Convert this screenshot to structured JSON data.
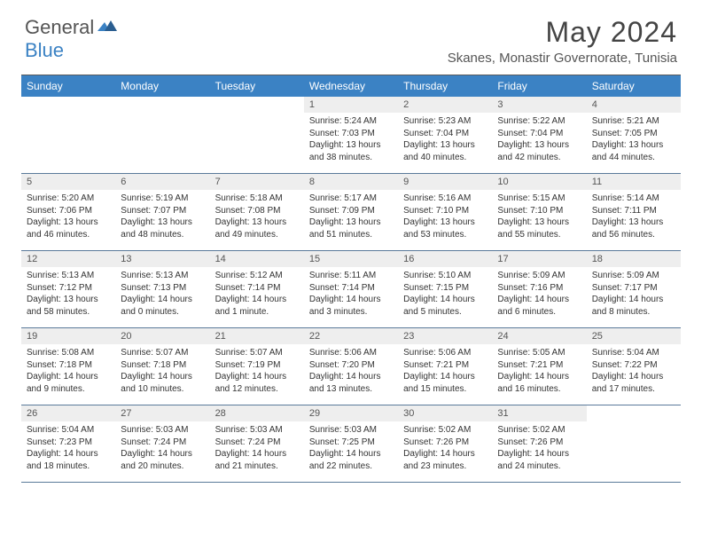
{
  "brand": {
    "part1": "General",
    "part2": "Blue"
  },
  "title": "May 2024",
  "location": "Skanes, Monastir Governorate, Tunisia",
  "colors": {
    "accent": "#3b82c4",
    "header_text": "#ffffff",
    "daynum_bg": "#eeeeee",
    "border": "#5a7a9a",
    "text": "#333333"
  },
  "dow": [
    "Sunday",
    "Monday",
    "Tuesday",
    "Wednesday",
    "Thursday",
    "Friday",
    "Saturday"
  ],
  "weeks": [
    [
      {
        "n": "",
        "sr": "",
        "ss": "",
        "dl": ""
      },
      {
        "n": "",
        "sr": "",
        "ss": "",
        "dl": ""
      },
      {
        "n": "",
        "sr": "",
        "ss": "",
        "dl": ""
      },
      {
        "n": "1",
        "sr": "Sunrise: 5:24 AM",
        "ss": "Sunset: 7:03 PM",
        "dl": "Daylight: 13 hours and 38 minutes."
      },
      {
        "n": "2",
        "sr": "Sunrise: 5:23 AM",
        "ss": "Sunset: 7:04 PM",
        "dl": "Daylight: 13 hours and 40 minutes."
      },
      {
        "n": "3",
        "sr": "Sunrise: 5:22 AM",
        "ss": "Sunset: 7:04 PM",
        "dl": "Daylight: 13 hours and 42 minutes."
      },
      {
        "n": "4",
        "sr": "Sunrise: 5:21 AM",
        "ss": "Sunset: 7:05 PM",
        "dl": "Daylight: 13 hours and 44 minutes."
      }
    ],
    [
      {
        "n": "5",
        "sr": "Sunrise: 5:20 AM",
        "ss": "Sunset: 7:06 PM",
        "dl": "Daylight: 13 hours and 46 minutes."
      },
      {
        "n": "6",
        "sr": "Sunrise: 5:19 AM",
        "ss": "Sunset: 7:07 PM",
        "dl": "Daylight: 13 hours and 48 minutes."
      },
      {
        "n": "7",
        "sr": "Sunrise: 5:18 AM",
        "ss": "Sunset: 7:08 PM",
        "dl": "Daylight: 13 hours and 49 minutes."
      },
      {
        "n": "8",
        "sr": "Sunrise: 5:17 AM",
        "ss": "Sunset: 7:09 PM",
        "dl": "Daylight: 13 hours and 51 minutes."
      },
      {
        "n": "9",
        "sr": "Sunrise: 5:16 AM",
        "ss": "Sunset: 7:10 PM",
        "dl": "Daylight: 13 hours and 53 minutes."
      },
      {
        "n": "10",
        "sr": "Sunrise: 5:15 AM",
        "ss": "Sunset: 7:10 PM",
        "dl": "Daylight: 13 hours and 55 minutes."
      },
      {
        "n": "11",
        "sr": "Sunrise: 5:14 AM",
        "ss": "Sunset: 7:11 PM",
        "dl": "Daylight: 13 hours and 56 minutes."
      }
    ],
    [
      {
        "n": "12",
        "sr": "Sunrise: 5:13 AM",
        "ss": "Sunset: 7:12 PM",
        "dl": "Daylight: 13 hours and 58 minutes."
      },
      {
        "n": "13",
        "sr": "Sunrise: 5:13 AM",
        "ss": "Sunset: 7:13 PM",
        "dl": "Daylight: 14 hours and 0 minutes."
      },
      {
        "n": "14",
        "sr": "Sunrise: 5:12 AM",
        "ss": "Sunset: 7:14 PM",
        "dl": "Daylight: 14 hours and 1 minute."
      },
      {
        "n": "15",
        "sr": "Sunrise: 5:11 AM",
        "ss": "Sunset: 7:14 PM",
        "dl": "Daylight: 14 hours and 3 minutes."
      },
      {
        "n": "16",
        "sr": "Sunrise: 5:10 AM",
        "ss": "Sunset: 7:15 PM",
        "dl": "Daylight: 14 hours and 5 minutes."
      },
      {
        "n": "17",
        "sr": "Sunrise: 5:09 AM",
        "ss": "Sunset: 7:16 PM",
        "dl": "Daylight: 14 hours and 6 minutes."
      },
      {
        "n": "18",
        "sr": "Sunrise: 5:09 AM",
        "ss": "Sunset: 7:17 PM",
        "dl": "Daylight: 14 hours and 8 minutes."
      }
    ],
    [
      {
        "n": "19",
        "sr": "Sunrise: 5:08 AM",
        "ss": "Sunset: 7:18 PM",
        "dl": "Daylight: 14 hours and 9 minutes."
      },
      {
        "n": "20",
        "sr": "Sunrise: 5:07 AM",
        "ss": "Sunset: 7:18 PM",
        "dl": "Daylight: 14 hours and 10 minutes."
      },
      {
        "n": "21",
        "sr": "Sunrise: 5:07 AM",
        "ss": "Sunset: 7:19 PM",
        "dl": "Daylight: 14 hours and 12 minutes."
      },
      {
        "n": "22",
        "sr": "Sunrise: 5:06 AM",
        "ss": "Sunset: 7:20 PM",
        "dl": "Daylight: 14 hours and 13 minutes."
      },
      {
        "n": "23",
        "sr": "Sunrise: 5:06 AM",
        "ss": "Sunset: 7:21 PM",
        "dl": "Daylight: 14 hours and 15 minutes."
      },
      {
        "n": "24",
        "sr": "Sunrise: 5:05 AM",
        "ss": "Sunset: 7:21 PM",
        "dl": "Daylight: 14 hours and 16 minutes."
      },
      {
        "n": "25",
        "sr": "Sunrise: 5:04 AM",
        "ss": "Sunset: 7:22 PM",
        "dl": "Daylight: 14 hours and 17 minutes."
      }
    ],
    [
      {
        "n": "26",
        "sr": "Sunrise: 5:04 AM",
        "ss": "Sunset: 7:23 PM",
        "dl": "Daylight: 14 hours and 18 minutes."
      },
      {
        "n": "27",
        "sr": "Sunrise: 5:03 AM",
        "ss": "Sunset: 7:24 PM",
        "dl": "Daylight: 14 hours and 20 minutes."
      },
      {
        "n": "28",
        "sr": "Sunrise: 5:03 AM",
        "ss": "Sunset: 7:24 PM",
        "dl": "Daylight: 14 hours and 21 minutes."
      },
      {
        "n": "29",
        "sr": "Sunrise: 5:03 AM",
        "ss": "Sunset: 7:25 PM",
        "dl": "Daylight: 14 hours and 22 minutes."
      },
      {
        "n": "30",
        "sr": "Sunrise: 5:02 AM",
        "ss": "Sunset: 7:26 PM",
        "dl": "Daylight: 14 hours and 23 minutes."
      },
      {
        "n": "31",
        "sr": "Sunrise: 5:02 AM",
        "ss": "Sunset: 7:26 PM",
        "dl": "Daylight: 14 hours and 24 minutes."
      },
      {
        "n": "",
        "sr": "",
        "ss": "",
        "dl": ""
      }
    ]
  ]
}
